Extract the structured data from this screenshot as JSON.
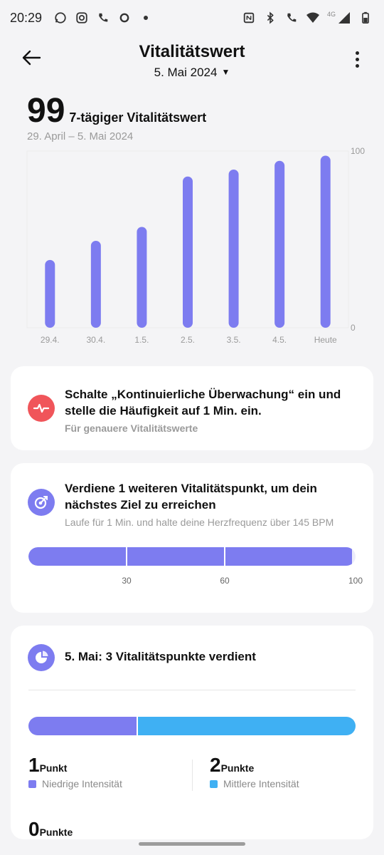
{
  "status_bar": {
    "time": "20:29",
    "network": "4G"
  },
  "header": {
    "title": "Vitalitätswert",
    "date": "5. Mai 2024"
  },
  "summary": {
    "score": "99",
    "label": "7-tägiger Vitalitätswert",
    "range": "29. April – 5. Mai 2024"
  },
  "chart_data": {
    "type": "bar",
    "categories": [
      "29.4.",
      "30.4.",
      "1.5.",
      "2.5.",
      "3.5.",
      "4.5.",
      "Heute"
    ],
    "values": [
      39,
      50,
      58,
      87,
      91,
      96,
      99
    ],
    "ylim": [
      0,
      100
    ],
    "y_ticks": [
      "100",
      "0"
    ],
    "bar_color": "#7d7cf0"
  },
  "monitoring_card": {
    "text": "Schalte „Kontinuierliche Überwachung“ ein und stelle die Häufigkeit auf 1 Min. ein.",
    "subtext": "Für genauere Vitalitätswerte"
  },
  "goal_card": {
    "text": "Verdiene 1 weiteren Vitalitätspunkt, um dein nächstes Ziel zu erreichen",
    "subtext": "Laufe für 1 Min. und halte deine Herzfrequenz über 145 BPM",
    "progress_value": 99,
    "ticks": [
      {
        "label": "30",
        "value": 30
      },
      {
        "label": "60",
        "value": 60
      },
      {
        "label": "100",
        "value": 100
      }
    ]
  },
  "points_card": {
    "title": "5. Mai: 3 Vitalitätspunkte verdient",
    "share_low": 0.33,
    "low": {
      "value": "1",
      "unit": "Punkt",
      "label": "Niedrige Intensität",
      "color": "#7d7cf0"
    },
    "mid": {
      "value": "2",
      "unit": "Punkte",
      "label": "Mittlere Intensität",
      "color": "#3fb0f3"
    },
    "high": {
      "value": "0",
      "unit": "Punkte"
    }
  }
}
